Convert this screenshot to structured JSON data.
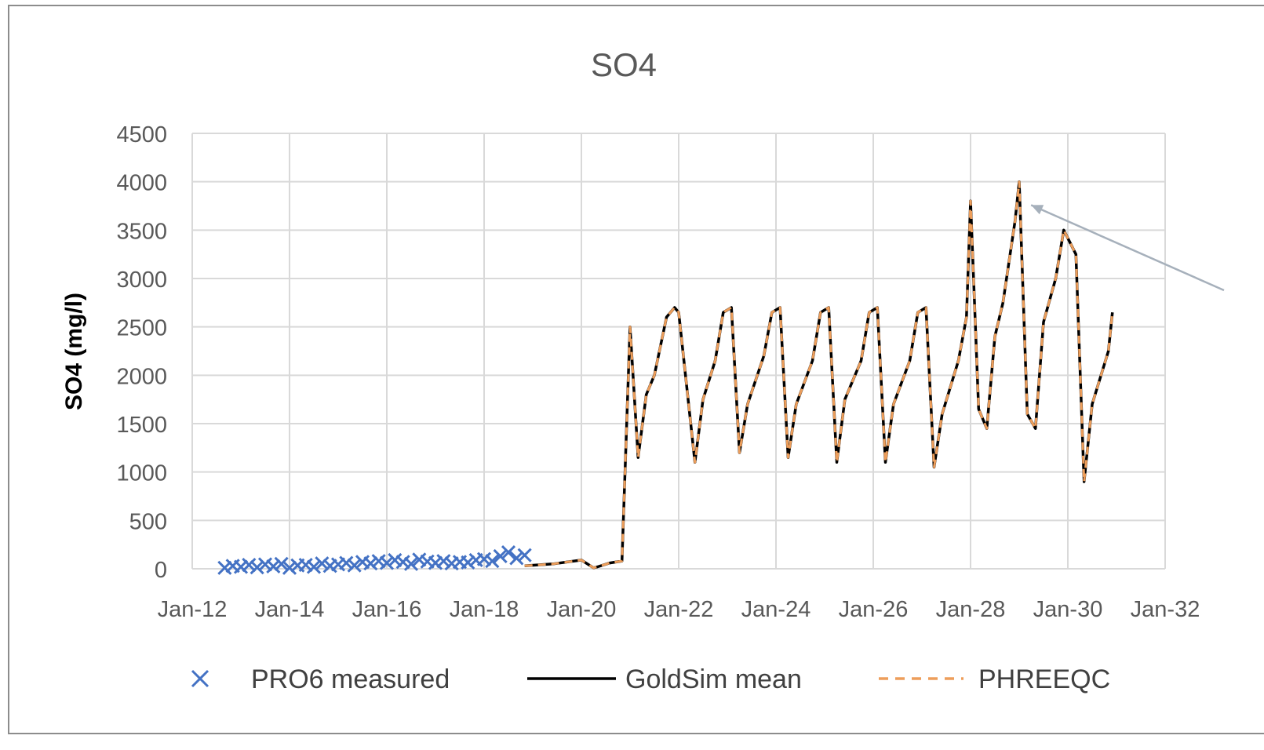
{
  "chart_data": {
    "type": "line",
    "title": "SO4",
    "xlabel": "",
    "ylabel": "SO4 (mg/l)",
    "ylim": [
      0,
      4500
    ],
    "y_ticks": [
      "0",
      "500",
      "1000",
      "1500",
      "2000",
      "2500",
      "3000",
      "3500",
      "4000",
      "4500"
    ],
    "xlim": [
      "2012-01",
      "2032-01"
    ],
    "x_ticks": [
      "Jan-12",
      "Jan-14",
      "Jan-16",
      "Jan-18",
      "Jan-20",
      "Jan-22",
      "Jan-24",
      "Jan-26",
      "Jan-28",
      "Jan-30",
      "Jan-32"
    ],
    "grid": true,
    "legend_position": "bottom",
    "series": [
      {
        "name": "PRO6 measured",
        "kind": "scatter",
        "marker": "x",
        "color": "#4472c4",
        "x": [
          "2012-09",
          "2012-11",
          "2013-01",
          "2013-03",
          "2013-05",
          "2013-07",
          "2013-09",
          "2013-11",
          "2014-01",
          "2014-03",
          "2014-05",
          "2014-07",
          "2014-09",
          "2014-11",
          "2015-01",
          "2015-03",
          "2015-05",
          "2015-07",
          "2015-09",
          "2015-11",
          "2016-01",
          "2016-03",
          "2016-05",
          "2016-07",
          "2016-09",
          "2016-11",
          "2017-01",
          "2017-03",
          "2017-05",
          "2017-07",
          "2017-09",
          "2017-11",
          "2018-01",
          "2018-03",
          "2018-05",
          "2018-07",
          "2018-09",
          "2018-11"
        ],
        "y": [
          10,
          30,
          20,
          40,
          15,
          45,
          25,
          50,
          10,
          35,
          40,
          20,
          55,
          30,
          45,
          60,
          35,
          70,
          55,
          80,
          60,
          90,
          70,
          50,
          95,
          75,
          60,
          80,
          55,
          70,
          65,
          90,
          100,
          80,
          130,
          170,
          110,
          140
        ]
      },
      {
        "name": "GoldSim mean",
        "kind": "line",
        "color": "#000000",
        "x": [
          "2018-11",
          "2019-06",
          "2020-01",
          "2020-04",
          "2020-05",
          "2020-08",
          "2020-11",
          "2021-01",
          "2021-03",
          "2021-05",
          "2021-07",
          "2021-10",
          "2021-12",
          "2022-01",
          "2022-05",
          "2022-07",
          "2022-10",
          "2022-12",
          "2023-02",
          "2023-04",
          "2023-06",
          "2023-10",
          "2023-12",
          "2024-02",
          "2024-04",
          "2024-06",
          "2024-10",
          "2024-12",
          "2025-02",
          "2025-04",
          "2025-06",
          "2025-10",
          "2025-12",
          "2026-02",
          "2026-04",
          "2026-06",
          "2026-10",
          "2026-12",
          "2027-02",
          "2027-04",
          "2027-06",
          "2027-10",
          "2027-12",
          "2028-01",
          "2028-03",
          "2028-05",
          "2028-07",
          "2028-09",
          "2028-12",
          "2029-01",
          "2029-03",
          "2029-05",
          "2029-07",
          "2029-10",
          "2029-12",
          "2030-03",
          "2030-05",
          "2030-07",
          "2030-11",
          "2030-12"
        ],
        "y": [
          30,
          50,
          90,
          10,
          20,
          60,
          80,
          2500,
          1150,
          1800,
          2000,
          2600,
          2700,
          2650,
          1100,
          1750,
          2150,
          2650,
          2700,
          1200,
          1700,
          2200,
          2650,
          2700,
          1150,
          1700,
          2150,
          2650,
          2700,
          1100,
          1750,
          2150,
          2650,
          2700,
          1100,
          1700,
          2150,
          2650,
          2700,
          1050,
          1600,
          2150,
          2600,
          3800,
          1650,
          1450,
          2400,
          2750,
          3600,
          4000,
          1600,
          1450,
          2550,
          3000,
          3500,
          3250,
          900,
          1700,
          2250,
          2650
        ]
      },
      {
        "name": "PHREEQC",
        "kind": "line",
        "dashed": true,
        "color": "#ed9e5b",
        "x": [
          "2018-11",
          "2019-06",
          "2020-01",
          "2020-04",
          "2020-05",
          "2020-08",
          "2020-11",
          "2021-01",
          "2021-03",
          "2021-05",
          "2021-07",
          "2021-10",
          "2021-12",
          "2022-01",
          "2022-05",
          "2022-07",
          "2022-10",
          "2022-12",
          "2023-02",
          "2023-04",
          "2023-06",
          "2023-10",
          "2023-12",
          "2024-02",
          "2024-04",
          "2024-06",
          "2024-10",
          "2024-12",
          "2025-02",
          "2025-04",
          "2025-06",
          "2025-10",
          "2025-12",
          "2026-02",
          "2026-04",
          "2026-06",
          "2026-10",
          "2026-12",
          "2027-02",
          "2027-04",
          "2027-06",
          "2027-10",
          "2027-12",
          "2028-01",
          "2028-03",
          "2028-05",
          "2028-07",
          "2028-09",
          "2028-12",
          "2029-01",
          "2029-03",
          "2029-05",
          "2029-07",
          "2029-10",
          "2029-12",
          "2030-03",
          "2030-05",
          "2030-07",
          "2030-11",
          "2030-12"
        ],
        "y": [
          30,
          50,
          90,
          10,
          20,
          60,
          80,
          2500,
          1150,
          1800,
          2000,
          2600,
          2700,
          2650,
          1100,
          1750,
          2150,
          2650,
          2700,
          1200,
          1700,
          2200,
          2650,
          2700,
          1150,
          1700,
          2150,
          2650,
          2700,
          1100,
          1750,
          2150,
          2650,
          2700,
          1100,
          1700,
          2150,
          2650,
          2700,
          1050,
          1600,
          2150,
          2600,
          3800,
          1650,
          1450,
          2400,
          2750,
          3600,
          4000,
          1600,
          1450,
          2550,
          3000,
          3500,
          3250,
          900,
          1700,
          2250,
          2650
        ]
      }
    ],
    "annotations": [
      {
        "type": "arrow",
        "points_to": [
          "2029-02",
          3800
        ]
      }
    ]
  },
  "colors": {
    "grid": "#d9d9d9",
    "frame": "#8c8c8c",
    "text": "#595959",
    "arrow": "#a6b0bb"
  }
}
